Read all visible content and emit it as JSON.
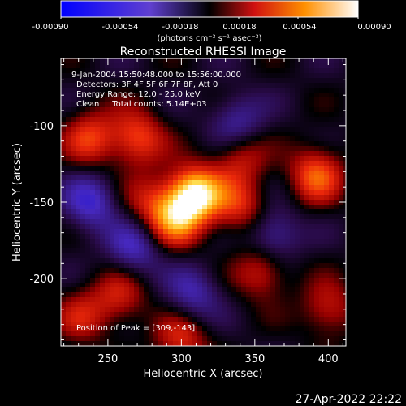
{
  "colorbar": {
    "ticks": [
      "-0.00090",
      "-0.00054",
      "-0.00018",
      "0.00018",
      "0.00054",
      "0.00090"
    ],
    "unit_label": "(photons cm⁻² s⁻¹ asec⁻²)",
    "range": [
      -0.0009,
      0.0009
    ]
  },
  "chart_data": {
    "type": "heatmap",
    "title": "Reconstructed RHESSI Image",
    "xlabel": "Heliocentric X (arcsec)",
    "ylabel": "Heliocentric Y (arcsec)",
    "xlim": [
      218,
      412
    ],
    "ylim": [
      -244,
      -56
    ],
    "xticks": [
      250,
      300,
      350,
      400
    ],
    "yticks": [
      -100,
      -150,
      -200
    ],
    "annotations": [
      "9-Jan-2004 15:50:48.000 to 15:56:00.000",
      "Detectors: 3F 4F 5F 6F 7F 8F, Att 0",
      "Energy Range: 12.0 - 25.0 keV",
      "Clean     Total counts: 5.14E+03"
    ],
    "peak_label": "Position of Peak = [309,-143]",
    "peak": {
      "x": 309,
      "y": -143
    },
    "blobs": [
      {
        "x": 309,
        "y": -145,
        "amp": 1.0
      },
      {
        "x": 296,
        "y": -162,
        "amp": 0.6
      },
      {
        "x": 270,
        "y": -108,
        "amp": 0.55
      },
      {
        "x": 238,
        "y": -108,
        "amp": 0.5
      },
      {
        "x": 392,
        "y": -132,
        "amp": 0.6
      },
      {
        "x": 340,
        "y": -153,
        "amp": 0.45
      },
      {
        "x": 340,
        "y": -120,
        "amp": 0.4
      },
      {
        "x": 278,
        "y": -150,
        "amp": 0.35
      },
      {
        "x": 355,
        "y": -195,
        "amp": 0.45
      },
      {
        "x": 258,
        "y": -212,
        "amp": 0.4
      },
      {
        "x": 232,
        "y": -225,
        "amp": 0.35
      },
      {
        "x": 300,
        "y": -240,
        "amp": 0.45
      },
      {
        "x": 400,
        "y": -220,
        "amp": 0.4
      },
      {
        "x": 238,
        "y": -150,
        "amp": -0.5
      },
      {
        "x": 268,
        "y": -180,
        "amp": -0.45
      },
      {
        "x": 362,
        "y": -172,
        "amp": -0.45
      },
      {
        "x": 338,
        "y": -98,
        "amp": -0.4
      },
      {
        "x": 308,
        "y": -210,
        "amp": -0.4
      }
    ]
  },
  "footer": {
    "date": "27-Apr-2022 22:22"
  }
}
